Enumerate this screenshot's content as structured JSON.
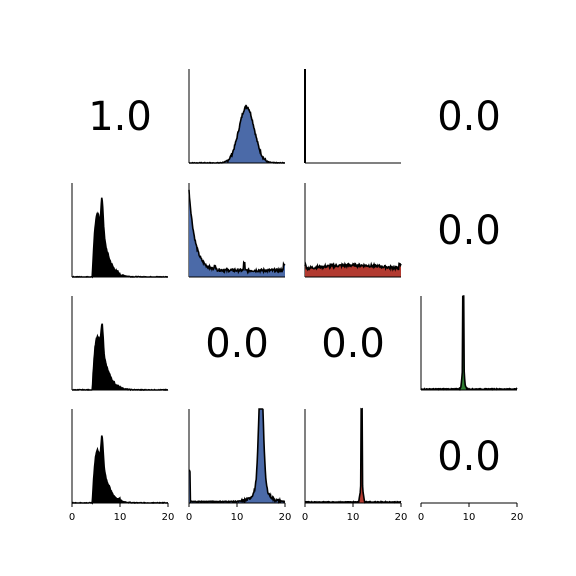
{
  "chart_data": {
    "type": "histogram-grid",
    "title": "",
    "xlim": [
      0,
      20
    ],
    "x_ticks": [
      0,
      10,
      20
    ],
    "x_tick_labels": [
      "0",
      "10",
      "20"
    ],
    "colors": {
      "black": "#000000",
      "blue": "#4b6aa8",
      "red": "#b23a30",
      "green": "#2e7d32"
    },
    "panels": [
      {
        "row": 0,
        "col": 0,
        "kind": "text",
        "text": "1.0"
      },
      {
        "row": 0,
        "col": 1,
        "kind": "hist",
        "color": "blue",
        "dist": "gaussian",
        "center": 12,
        "sigma": 1.6,
        "peak": 0.6
      },
      {
        "row": 0,
        "col": 2,
        "kind": "hist",
        "color": "black",
        "dist": "vline",
        "position": 0,
        "height": 1.0
      },
      {
        "row": 0,
        "col": 3,
        "kind": "text",
        "text": "0.0"
      },
      {
        "row": 1,
        "col": 0,
        "kind": "hist",
        "color": "black",
        "dist": "skewed",
        "center": 6,
        "peak": 0.92
      },
      {
        "row": 1,
        "col": 1,
        "kind": "hist",
        "color": "blue",
        "dist": "decay",
        "peak": 0.92,
        "floor": 0.07
      },
      {
        "row": 1,
        "col": 2,
        "kind": "hist",
        "color": "red",
        "dist": "flat",
        "level": 0.09
      },
      {
        "row": 1,
        "col": 3,
        "kind": "text",
        "text": "0.0"
      },
      {
        "row": 2,
        "col": 0,
        "kind": "hist",
        "color": "black",
        "dist": "skewed",
        "center": 6,
        "peak": 0.78
      },
      {
        "row": 2,
        "col": 1,
        "kind": "text",
        "text": "0.0"
      },
      {
        "row": 2,
        "col": 2,
        "kind": "text",
        "text": "0.0"
      },
      {
        "row": 2,
        "col": 3,
        "kind": "hist",
        "color": "green",
        "dist": "spike",
        "center": 8.8,
        "peak": 1.0
      },
      {
        "row": 3,
        "col": 0,
        "kind": "hist",
        "color": "black",
        "dist": "skewed",
        "center": 6,
        "peak": 0.78,
        "show_xticks": true
      },
      {
        "row": 3,
        "col": 1,
        "kind": "hist",
        "color": "blue",
        "dist": "narrow",
        "center": 15,
        "sigma": 0.45,
        "peak": 1.0,
        "spike_left": 0.32,
        "show_xticks": true
      },
      {
        "row": 3,
        "col": 2,
        "kind": "hist",
        "color": "red",
        "dist": "spike",
        "center": 11.8,
        "peak": 1.0,
        "show_xticks": true
      },
      {
        "row": 3,
        "col": 3,
        "kind": "text",
        "text": "0.0",
        "show_xticks": true
      }
    ]
  }
}
